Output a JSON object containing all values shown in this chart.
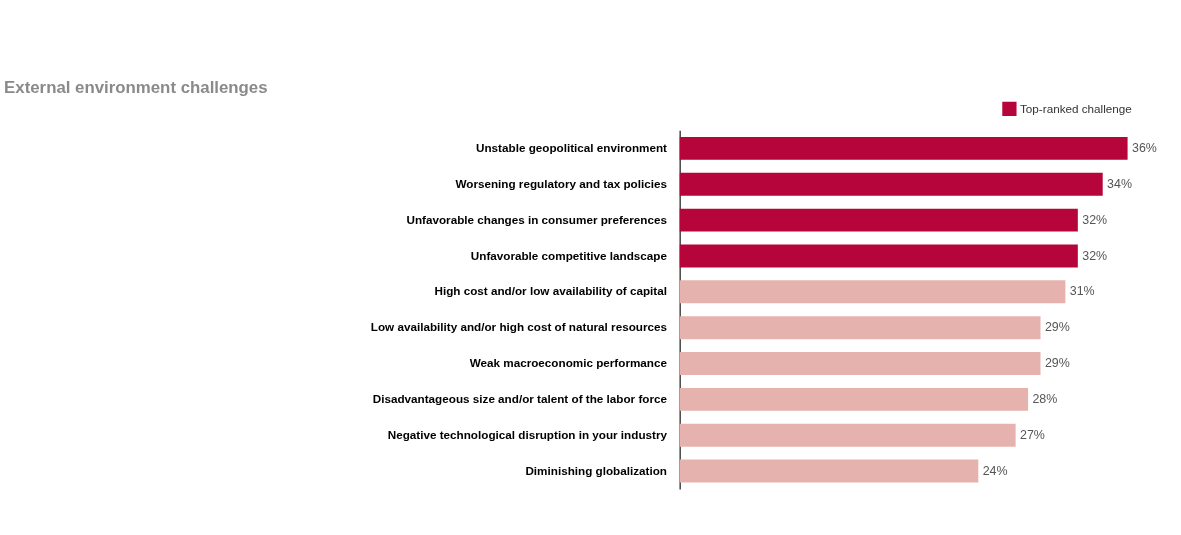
{
  "chart_data": {
    "type": "bar",
    "orientation": "horizontal",
    "title": "External environment challenges",
    "categories": [
      "Unstable geopolitical environment",
      "Worsening regulatory and tax policies",
      "Unfavorable changes in consumer preferences",
      "Unfavorable competitive landscape",
      "High cost and/or low availability of capital",
      "Low availability and/or high cost of natural resources",
      "Weak macroeconomic performance",
      "Disadvantageous size and/or talent of the labor force",
      "Negative technological disruption in your industry",
      "Diminishing globalization"
    ],
    "series": [
      {
        "name": "Top-ranked challenge",
        "color": "#b5053a",
        "values": [
          36,
          34,
          32,
          32,
          null,
          null,
          null,
          null,
          null,
          null
        ],
        "value_labels": [
          "36%",
          "34%",
          "32%",
          "32%",
          null,
          null,
          null,
          null,
          null,
          null
        ]
      },
      {
        "color": "#e6b2ad",
        "values": [
          null,
          null,
          null,
          null,
          31,
          29,
          29,
          28,
          27,
          24
        ],
        "value_labels": [
          null,
          null,
          null,
          null,
          "31%",
          "29%",
          "29%",
          "28%",
          "27%",
          "24%"
        ]
      }
    ],
    "legend": "top right",
    "grid": false
  }
}
